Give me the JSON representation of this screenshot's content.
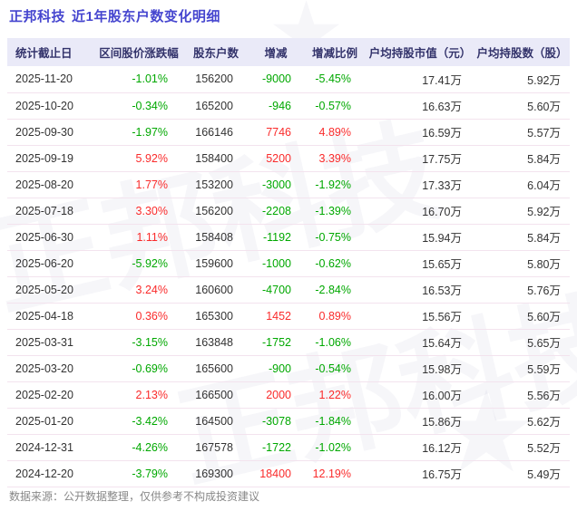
{
  "title": {
    "stock": "正邦科技",
    "subtitle": "近1年股东户数变化明细"
  },
  "chart_data": {
    "type": "table",
    "title": "正邦科技 近1年股东户数变化明细",
    "columns": [
      {
        "key": "date",
        "label": "统计截止日",
        "sign_color": false
      },
      {
        "key": "change_pct",
        "label": "区间股价涨跌幅",
        "sign_color": true
      },
      {
        "key": "holders",
        "label": "股东户数",
        "sign_color": false
      },
      {
        "key": "delta",
        "label": "增减",
        "sign_color": true
      },
      {
        "key": "delta_pct",
        "label": "增减比例",
        "sign_color": true
      },
      {
        "key": "avg_value",
        "label": "户均持股市值（元）",
        "sign_color": false
      },
      {
        "key": "avg_shares",
        "label": "户均持股数（股）",
        "sign_color": false
      }
    ],
    "rows": [
      {
        "date": "2025-11-20",
        "change_pct": "-1.01%",
        "holders": "156200",
        "delta": "-9000",
        "delta_pct": "-5.45%",
        "avg_value": "17.41万",
        "avg_shares": "5.92万"
      },
      {
        "date": "2025-10-20",
        "change_pct": "-0.34%",
        "holders": "165200",
        "delta": "-946",
        "delta_pct": "-0.57%",
        "avg_value": "16.63万",
        "avg_shares": "5.60万"
      },
      {
        "date": "2025-09-30",
        "change_pct": "-1.97%",
        "holders": "166146",
        "delta": "7746",
        "delta_pct": "4.89%",
        "avg_value": "16.59万",
        "avg_shares": "5.57万"
      },
      {
        "date": "2025-09-19",
        "change_pct": "5.92%",
        "holders": "158400",
        "delta": "5200",
        "delta_pct": "3.39%",
        "avg_value": "17.75万",
        "avg_shares": "5.84万"
      },
      {
        "date": "2025-08-20",
        "change_pct": "1.77%",
        "holders": "153200",
        "delta": "-3000",
        "delta_pct": "-1.92%",
        "avg_value": "17.33万",
        "avg_shares": "6.04万"
      },
      {
        "date": "2025-07-18",
        "change_pct": "3.30%",
        "holders": "156200",
        "delta": "-2208",
        "delta_pct": "-1.39%",
        "avg_value": "16.70万",
        "avg_shares": "5.92万"
      },
      {
        "date": "2025-06-30",
        "change_pct": "1.11%",
        "holders": "158408",
        "delta": "-1192",
        "delta_pct": "-0.75%",
        "avg_value": "15.94万",
        "avg_shares": "5.84万"
      },
      {
        "date": "2025-06-20",
        "change_pct": "-5.92%",
        "holders": "159600",
        "delta": "-1000",
        "delta_pct": "-0.62%",
        "avg_value": "15.65万",
        "avg_shares": "5.80万"
      },
      {
        "date": "2025-05-20",
        "change_pct": "3.24%",
        "holders": "160600",
        "delta": "-4700",
        "delta_pct": "-2.84%",
        "avg_value": "16.53万",
        "avg_shares": "5.76万"
      },
      {
        "date": "2025-04-18",
        "change_pct": "0.36%",
        "holders": "165300",
        "delta": "1452",
        "delta_pct": "0.89%",
        "avg_value": "15.56万",
        "avg_shares": "5.60万"
      },
      {
        "date": "2025-03-31",
        "change_pct": "-3.15%",
        "holders": "163848",
        "delta": "-1752",
        "delta_pct": "-1.06%",
        "avg_value": "15.64万",
        "avg_shares": "5.65万"
      },
      {
        "date": "2025-03-20",
        "change_pct": "-0.69%",
        "holders": "165600",
        "delta": "-900",
        "delta_pct": "-0.54%",
        "avg_value": "15.98万",
        "avg_shares": "5.59万"
      },
      {
        "date": "2025-02-20",
        "change_pct": "2.13%",
        "holders": "166500",
        "delta": "2000",
        "delta_pct": "1.22%",
        "avg_value": "16.00万",
        "avg_shares": "5.56万"
      },
      {
        "date": "2025-01-20",
        "change_pct": "-3.42%",
        "holders": "164500",
        "delta": "-3078",
        "delta_pct": "-1.84%",
        "avg_value": "15.86万",
        "avg_shares": "5.62万"
      },
      {
        "date": "2024-12-31",
        "change_pct": "-4.26%",
        "holders": "167578",
        "delta": "-1722",
        "delta_pct": "-1.02%",
        "avg_value": "16.12万",
        "avg_shares": "5.52万"
      },
      {
        "date": "2024-12-20",
        "change_pct": "-3.79%",
        "holders": "169300",
        "delta": "18400",
        "delta_pct": "12.19%",
        "avg_value": "16.75万",
        "avg_shares": "5.49万"
      }
    ]
  },
  "footer": "数据来源：公开数据整理，仅供参考不构成投资建议",
  "watermark": {
    "text": "正邦科技",
    "star": "★"
  },
  "colors": {
    "up": "#fa2b2b",
    "down": "#00a800",
    "title": "#4545cf",
    "header_bg": "#eaeaf8",
    "header_text": "#33336b"
  }
}
